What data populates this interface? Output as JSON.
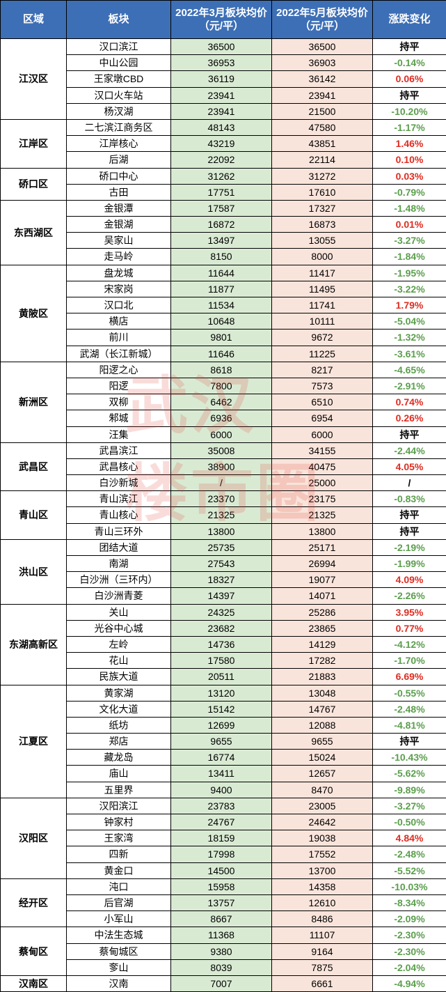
{
  "header": {
    "region": "区域",
    "area": "板块",
    "march": "2022年3月板块均价（元/平）",
    "may": "2022年5月板块均价（元/平）",
    "change": "涨跌变化"
  },
  "colors": {
    "header_bg": "#3d6fb6",
    "header_text": "#ffffff",
    "march_bg": "#d9ead3",
    "may_bg": "#f9e4db",
    "border": "#000000",
    "flat": "#000000",
    "up": "#e02b20",
    "down": "#5b9e4d",
    "watermark": "rgba(220,60,50,0.18)"
  },
  "watermark": "武汉\n楼市圈",
  "regions": [
    {
      "name": "江汉区",
      "rows": [
        {
          "area": "汉口滨江",
          "mar": "36500",
          "may": "36500",
          "chg": "持平",
          "dir": "flat"
        },
        {
          "area": "中山公园",
          "mar": "36953",
          "may": "36903",
          "chg": "-0.14%",
          "dir": "down"
        },
        {
          "area": "王家墩CBD",
          "mar": "36119",
          "may": "36142",
          "chg": "0.06%",
          "dir": "up"
        },
        {
          "area": "汉口火车站",
          "mar": "23941",
          "may": "23941",
          "chg": "持平",
          "dir": "flat"
        },
        {
          "area": "杨汊湖",
          "mar": "23941",
          "may": "21500",
          "chg": "-10.20%",
          "dir": "down"
        }
      ]
    },
    {
      "name": "江岸区",
      "rows": [
        {
          "area": "二七滨江商务区",
          "mar": "48143",
          "may": "47580",
          "chg": "-1.17%",
          "dir": "down"
        },
        {
          "area": "江岸核心",
          "mar": "43219",
          "may": "43851",
          "chg": "1.46%",
          "dir": "up"
        },
        {
          "area": "后湖",
          "mar": "22092",
          "may": "22114",
          "chg": "0.10%",
          "dir": "up"
        }
      ]
    },
    {
      "name": "硚口区",
      "rows": [
        {
          "area": "硚口中心",
          "mar": "31262",
          "may": "31272",
          "chg": "0.03%",
          "dir": "up"
        },
        {
          "area": "古田",
          "mar": "17751",
          "may": "17610",
          "chg": "-0.79%",
          "dir": "down"
        }
      ]
    },
    {
      "name": "东西湖区",
      "rows": [
        {
          "area": "金银潭",
          "mar": "17587",
          "may": "17327",
          "chg": "-1.48%",
          "dir": "down"
        },
        {
          "area": "金银湖",
          "mar": "16872",
          "may": "16873",
          "chg": "0.01%",
          "dir": "up"
        },
        {
          "area": "吴家山",
          "mar": "13497",
          "may": "13055",
          "chg": "-3.27%",
          "dir": "down"
        },
        {
          "area": "走马岭",
          "mar": "8150",
          "may": "8000",
          "chg": "-1.84%",
          "dir": "down"
        }
      ]
    },
    {
      "name": "黄陂区",
      "rows": [
        {
          "area": "盘龙城",
          "mar": "11644",
          "may": "11417",
          "chg": "-1.95%",
          "dir": "down"
        },
        {
          "area": "宋家岗",
          "mar": "11877",
          "may": "11495",
          "chg": "-3.22%",
          "dir": "down"
        },
        {
          "area": "汉口北",
          "mar": "11534",
          "may": "11741",
          "chg": "1.79%",
          "dir": "up"
        },
        {
          "area": "横店",
          "mar": "10648",
          "may": "10111",
          "chg": "-5.04%",
          "dir": "down"
        },
        {
          "area": "前川",
          "mar": "9801",
          "may": "9672",
          "chg": "-1.32%",
          "dir": "down"
        },
        {
          "area": "武湖（长江新城）",
          "mar": "11646",
          "may": "11225",
          "chg": "-3.61%",
          "dir": "down"
        }
      ]
    },
    {
      "name": "新洲区",
      "rows": [
        {
          "area": "阳逻之心",
          "mar": "8618",
          "may": "8217",
          "chg": "-4.65%",
          "dir": "down"
        },
        {
          "area": "阳逻",
          "mar": "7800",
          "may": "7573",
          "chg": "-2.91%",
          "dir": "down"
        },
        {
          "area": "双柳",
          "mar": "6462",
          "may": "6510",
          "chg": "0.74%",
          "dir": "up"
        },
        {
          "area": "邾城",
          "mar": "6936",
          "may": "6954",
          "chg": "0.26%",
          "dir": "up"
        },
        {
          "area": "汪集",
          "mar": "6000",
          "may": "6000",
          "chg": "持平",
          "dir": "flat"
        }
      ]
    },
    {
      "name": "武昌区",
      "rows": [
        {
          "area": "武昌滨江",
          "mar": "35008",
          "may": "34155",
          "chg": "-2.44%",
          "dir": "down"
        },
        {
          "area": "武昌核心",
          "mar": "38900",
          "may": "40475",
          "chg": "4.05%",
          "dir": "up"
        },
        {
          "area": "白沙新城",
          "mar": "/",
          "may": "25000",
          "chg": "/",
          "dir": "flat"
        }
      ]
    },
    {
      "name": "青山区",
      "rows": [
        {
          "area": "青山滨江",
          "mar": "23370",
          "may": "23175",
          "chg": "-0.83%",
          "dir": "down"
        },
        {
          "area": "青山核心",
          "mar": "21325",
          "may": "21325",
          "chg": "持平",
          "dir": "flat"
        },
        {
          "area": "青山三环外",
          "mar": "13800",
          "may": "13800",
          "chg": "持平",
          "dir": "flat"
        }
      ]
    },
    {
      "name": "洪山区",
      "rows": [
        {
          "area": "团结大道",
          "mar": "25735",
          "may": "25171",
          "chg": "-2.19%",
          "dir": "down"
        },
        {
          "area": "南湖",
          "mar": "27543",
          "may": "26994",
          "chg": "-1.99%",
          "dir": "down"
        },
        {
          "area": "白沙洲（三环内）",
          "mar": "18327",
          "may": "19077",
          "chg": "4.09%",
          "dir": "up"
        },
        {
          "area": "白沙洲青菱",
          "mar": "14397",
          "may": "14071",
          "chg": "-2.26%",
          "dir": "down"
        }
      ]
    },
    {
      "name": "东湖高新区",
      "rows": [
        {
          "area": "关山",
          "mar": "24325",
          "may": "25286",
          "chg": "3.95%",
          "dir": "up"
        },
        {
          "area": "光谷中心城",
          "mar": "23682",
          "may": "23865",
          "chg": "0.77%",
          "dir": "up"
        },
        {
          "area": "左岭",
          "mar": "14736",
          "may": "14129",
          "chg": "-4.12%",
          "dir": "down"
        },
        {
          "area": "花山",
          "mar": "17580",
          "may": "17282",
          "chg": "-1.70%",
          "dir": "down"
        },
        {
          "area": "民族大道",
          "mar": "20511",
          "may": "21883",
          "chg": "6.69%",
          "dir": "up"
        }
      ]
    },
    {
      "name": "江夏区",
      "rows": [
        {
          "area": "黄家湖",
          "mar": "13120",
          "may": "13048",
          "chg": "-0.55%",
          "dir": "down"
        },
        {
          "area": "文化大道",
          "mar": "15142",
          "may": "14767",
          "chg": "-2.48%",
          "dir": "down"
        },
        {
          "area": "纸坊",
          "mar": "12699",
          "may": "12088",
          "chg": "-4.81%",
          "dir": "down"
        },
        {
          "area": "郑店",
          "mar": "9655",
          "may": "9655",
          "chg": "持平",
          "dir": "flat"
        },
        {
          "area": "藏龙岛",
          "mar": "16774",
          "may": "15024",
          "chg": "-10.43%",
          "dir": "down"
        },
        {
          "area": "庙山",
          "mar": "13411",
          "may": "12657",
          "chg": "-5.62%",
          "dir": "down"
        },
        {
          "area": "五里界",
          "mar": "9400",
          "may": "8470",
          "chg": "-9.89%",
          "dir": "down"
        }
      ]
    },
    {
      "name": "汉阳区",
      "rows": [
        {
          "area": "汉阳滨江",
          "mar": "23783",
          "may": "23005",
          "chg": "-3.27%",
          "dir": "down"
        },
        {
          "area": "钟家村",
          "mar": "24767",
          "may": "24642",
          "chg": "-0.50%",
          "dir": "down"
        },
        {
          "area": "王家湾",
          "mar": "18159",
          "may": "19038",
          "chg": "4.84%",
          "dir": "up"
        },
        {
          "area": "四新",
          "mar": "17998",
          "may": "17552",
          "chg": "-2.48%",
          "dir": "down"
        },
        {
          "area": "黄金口",
          "mar": "14500",
          "may": "13700",
          "chg": "-5.52%",
          "dir": "down"
        }
      ]
    },
    {
      "name": "经开区",
      "rows": [
        {
          "area": "沌口",
          "mar": "15958",
          "may": "14358",
          "chg": "-10.03%",
          "dir": "down"
        },
        {
          "area": "后官湖",
          "mar": "13757",
          "may": "12610",
          "chg": "-8.34%",
          "dir": "down"
        },
        {
          "area": "小军山",
          "mar": "8667",
          "may": "8486",
          "chg": "-2.09%",
          "dir": "down"
        }
      ]
    },
    {
      "name": "蔡甸区",
      "rows": [
        {
          "area": "中法生态城",
          "mar": "11368",
          "may": "11107",
          "chg": "-2.30%",
          "dir": "down"
        },
        {
          "area": "蔡甸城区",
          "mar": "9380",
          "may": "9164",
          "chg": "-2.30%",
          "dir": "down"
        },
        {
          "area": "奓山",
          "mar": "8039",
          "may": "7875",
          "chg": "-2.04%",
          "dir": "down"
        }
      ]
    },
    {
      "name": "汉南区",
      "rows": [
        {
          "area": "汉南",
          "mar": "7007",
          "may": "6661",
          "chg": "-4.94%",
          "dir": "down"
        }
      ]
    }
  ]
}
